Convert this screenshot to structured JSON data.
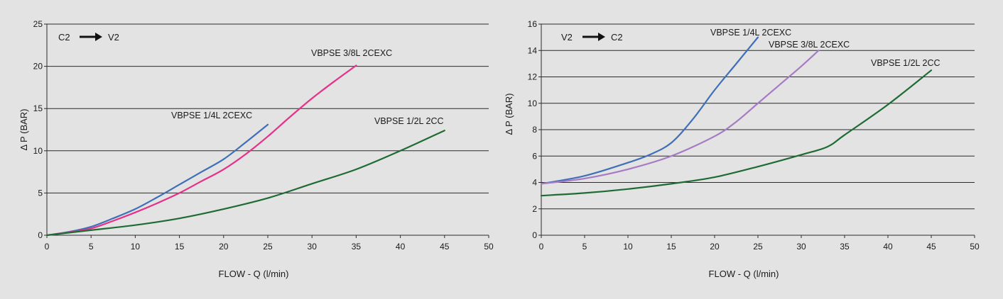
{
  "chart_data": [
    {
      "type": "line",
      "direction": {
        "from": "C2",
        "to": "V2"
      },
      "xlabel": "FLOW - Q (l/min)",
      "ylabel": "Δ P (BAR)",
      "xlim": [
        0,
        50
      ],
      "ylim": [
        0,
        25
      ],
      "xticks": [
        0,
        5,
        10,
        15,
        20,
        25,
        30,
        35,
        40,
        45,
        50
      ],
      "yticks": [
        0,
        5,
        10,
        15,
        20,
        25
      ],
      "grid": true,
      "series": [
        {
          "name": "VBPSE 1/4L 2CEXC",
          "color": "#3f6fb6",
          "x": [
            0,
            2.5,
            5,
            7.5,
            10,
            12.5,
            15,
            17.5,
            20,
            22.5,
            25
          ],
          "y": [
            0,
            0.4,
            1.0,
            2.0,
            3.1,
            4.5,
            6.0,
            7.5,
            9.0,
            11.0,
            13.1
          ]
        },
        {
          "name": "VBPSE 3/8L 2CEXC",
          "color": "#e6308a",
          "x": [
            0,
            2.5,
            5,
            7.5,
            10,
            12.5,
            15,
            17.5,
            20,
            22.5,
            25,
            27.5,
            30,
            32.5,
            35
          ],
          "y": [
            0,
            0.35,
            0.8,
            1.7,
            2.7,
            3.8,
            5.0,
            6.4,
            7.8,
            9.6,
            11.7,
            14.0,
            16.2,
            18.2,
            20.1
          ]
        },
        {
          "name": "VBPSE 1/2L 2CC",
          "color": "#1e6b34",
          "x": [
            0,
            5,
            10,
            15,
            20,
            25,
            30,
            35,
            40,
            45
          ],
          "y": [
            0,
            0.6,
            1.2,
            2.0,
            3.1,
            4.4,
            6.1,
            7.8,
            10.0,
            12.4
          ]
        }
      ]
    },
    {
      "type": "line",
      "direction": {
        "from": "V2",
        "to": "C2"
      },
      "xlabel": "FLOW - Q (l/min)",
      "ylabel": "Δ P (BAR)",
      "xlim": [
        0,
        50
      ],
      "ylim": [
        0,
        16
      ],
      "xticks": [
        0,
        5,
        10,
        15,
        20,
        25,
        30,
        35,
        40,
        45,
        50
      ],
      "yticks": [
        0,
        2,
        4,
        6,
        8,
        10,
        12,
        14,
        16
      ],
      "grid": true,
      "series": [
        {
          "name": "VBPSE 1/4L 2CEXC",
          "color": "#3f6fb6",
          "x": [
            0,
            5,
            10,
            12.5,
            15,
            17.5,
            20,
            22.5,
            25
          ],
          "y": [
            3.9,
            4.5,
            5.5,
            6.1,
            7.0,
            8.8,
            11.0,
            13.0,
            15.0
          ]
        },
        {
          "name": "VBPSE 3/8L 2CEXC",
          "color": "#a77ac4",
          "x": [
            0,
            5,
            10,
            15,
            20,
            22.5,
            25,
            27.5,
            30,
            32
          ],
          "y": [
            3.9,
            4.3,
            5.0,
            6.0,
            7.5,
            8.6,
            10.0,
            11.4,
            12.8,
            14.0
          ]
        },
        {
          "name": "VBPSE 1/2L 2CC",
          "color": "#1e6b34",
          "x": [
            0,
            5,
            10,
            15,
            20,
            25,
            30,
            33,
            35,
            40,
            45
          ],
          "y": [
            3.0,
            3.2,
            3.5,
            3.9,
            4.4,
            5.2,
            6.1,
            6.7,
            7.6,
            9.9,
            12.5
          ]
        }
      ]
    }
  ]
}
